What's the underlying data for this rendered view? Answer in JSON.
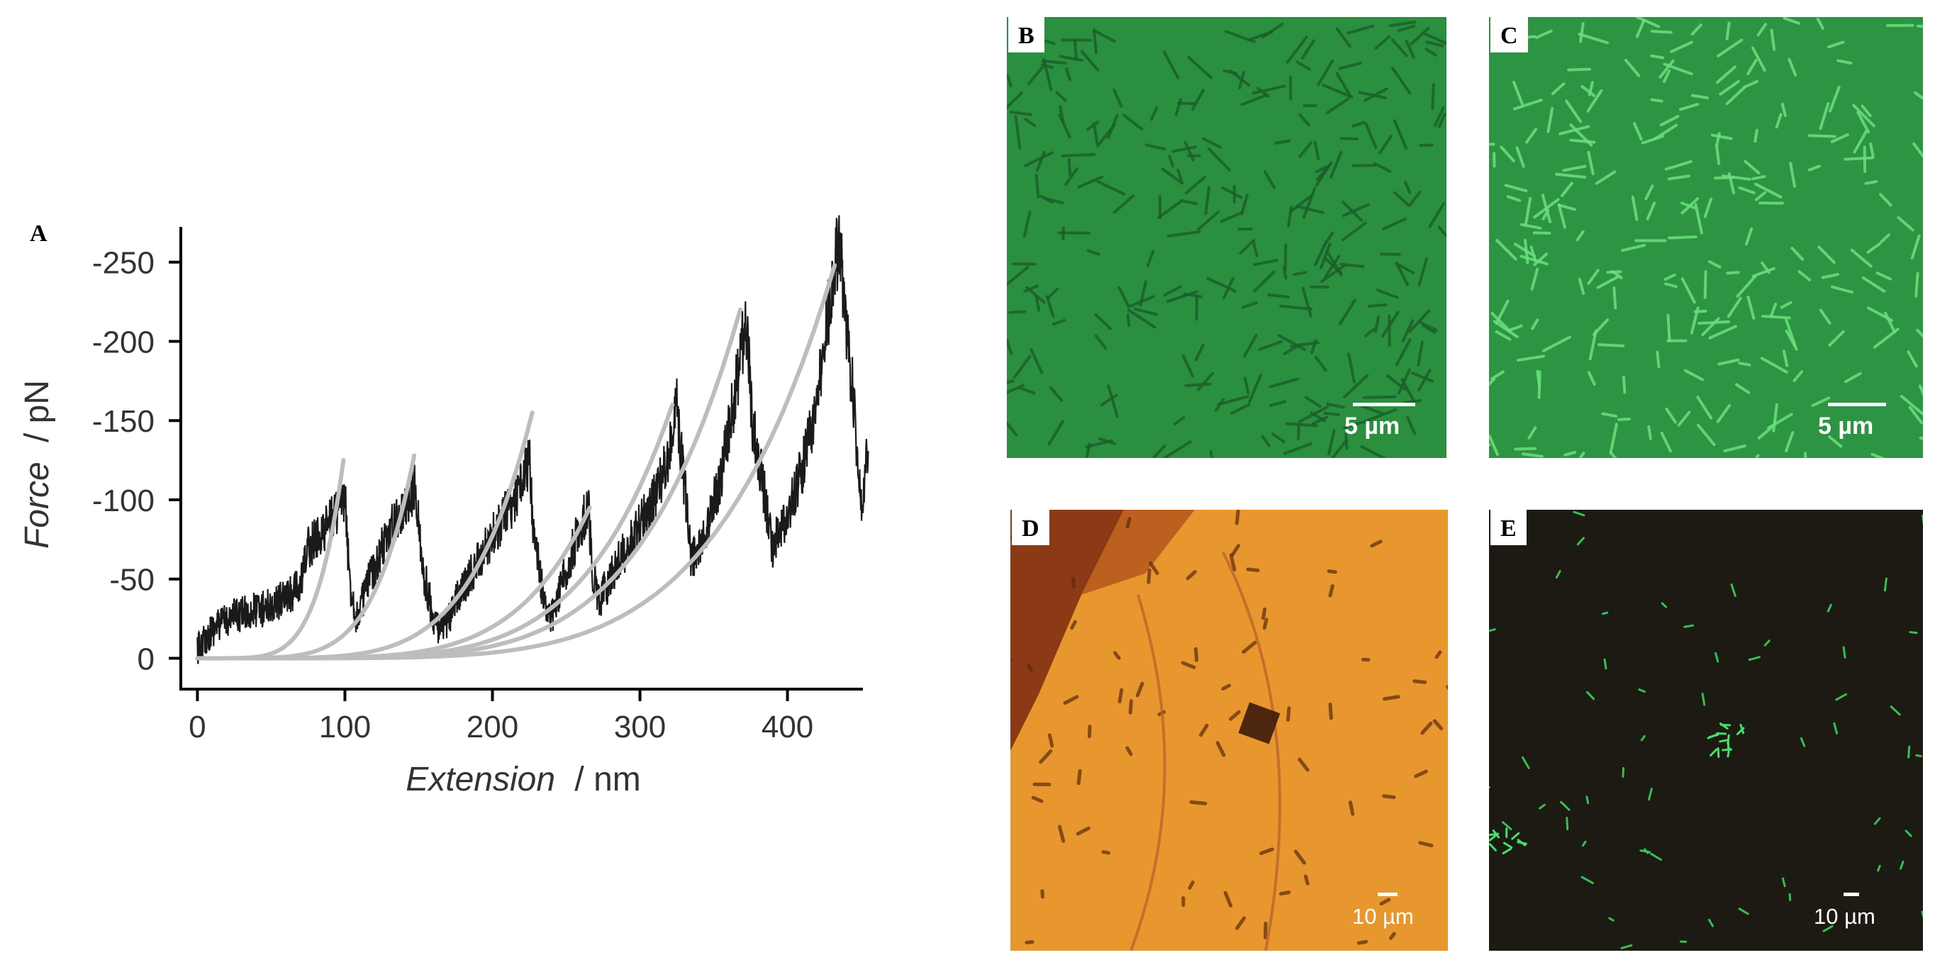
{
  "panels": {
    "a_label": "A",
    "b_label": "B",
    "c_label": "C",
    "d_label": "D",
    "e_label": "E"
  },
  "scale_bars": {
    "b": "5 µm",
    "c": "5 µm",
    "d": "10 µm",
    "e": "10 µm"
  },
  "colors": {
    "trace": "#1a1a1a",
    "fit": "#bdbdbd",
    "b_background": "#2a8f3e",
    "c_background": "#2d9444",
    "d_background": "#e8962e",
    "e_background": "#1c1a12"
  },
  "chart_data": {
    "type": "line",
    "xlabel_italic": "Extension",
    "xlabel_unit": "/ nm",
    "ylabel_italic": "Force",
    "ylabel_unit": "/ pN",
    "xlim": [
      -5,
      455
    ],
    "ylim": [
      15,
      -270
    ],
    "y_inverted": true,
    "x_ticks": [
      0,
      100,
      200,
      300,
      400
    ],
    "x_tick_labels": [
      "0",
      "100",
      "200",
      "300",
      "400"
    ],
    "y_ticks": [
      0,
      -50,
      -100,
      -150,
      -200,
      -250
    ],
    "y_tick_labels": [
      "0",
      "-50",
      "-100",
      "-150",
      "-200",
      "-250"
    ],
    "trace_envelope": [
      {
        "x": 0,
        "y": -5
      },
      {
        "x": 10,
        "y": -18
      },
      {
        "x": 20,
        "y": -25
      },
      {
        "x": 30,
        "y": -28
      },
      {
        "x": 40,
        "y": -30
      },
      {
        "x": 50,
        "y": -33
      },
      {
        "x": 60,
        "y": -38
      },
      {
        "x": 70,
        "y": -45
      },
      {
        "x": 75,
        "y": -70
      },
      {
        "x": 85,
        "y": -80
      },
      {
        "x": 92,
        "y": -90
      },
      {
        "x": 100,
        "y": -102
      },
      {
        "x": 103,
        "y": -50
      },
      {
        "x": 108,
        "y": -25
      },
      {
        "x": 115,
        "y": -45
      },
      {
        "x": 125,
        "y": -70
      },
      {
        "x": 135,
        "y": -88
      },
      {
        "x": 143,
        "y": -100
      },
      {
        "x": 148,
        "y": -110
      },
      {
        "x": 152,
        "y": -60
      },
      {
        "x": 160,
        "y": -25
      },
      {
        "x": 165,
        "y": -15
      },
      {
        "x": 175,
        "y": -35
      },
      {
        "x": 190,
        "y": -60
      },
      {
        "x": 205,
        "y": -85
      },
      {
        "x": 215,
        "y": -100
      },
      {
        "x": 225,
        "y": -125
      },
      {
        "x": 228,
        "y": -80
      },
      {
        "x": 235,
        "y": -35
      },
      {
        "x": 240,
        "y": -25
      },
      {
        "x": 250,
        "y": -55
      },
      {
        "x": 258,
        "y": -80
      },
      {
        "x": 265,
        "y": -95
      },
      {
        "x": 268,
        "y": -55
      },
      {
        "x": 272,
        "y": -35
      },
      {
        "x": 285,
        "y": -60
      },
      {
        "x": 300,
        "y": -85
      },
      {
        "x": 312,
        "y": -105
      },
      {
        "x": 320,
        "y": -130
      },
      {
        "x": 325,
        "y": -160
      },
      {
        "x": 330,
        "y": -110
      },
      {
        "x": 335,
        "y": -60
      },
      {
        "x": 345,
        "y": -80
      },
      {
        "x": 355,
        "y": -115
      },
      {
        "x": 365,
        "y": -170
      },
      {
        "x": 372,
        "y": -215
      },
      {
        "x": 376,
        "y": -150
      },
      {
        "x": 385,
        "y": -100
      },
      {
        "x": 390,
        "y": -70
      },
      {
        "x": 400,
        "y": -90
      },
      {
        "x": 410,
        "y": -120
      },
      {
        "x": 420,
        "y": -160
      },
      {
        "x": 428,
        "y": -220
      },
      {
        "x": 435,
        "y": -265
      },
      {
        "x": 440,
        "y": -210
      },
      {
        "x": 445,
        "y": -160
      },
      {
        "x": 450,
        "y": -100
      },
      {
        "x": 455,
        "y": -135
      }
    ],
    "wlc_fits_peak": [
      {
        "x": 99,
        "y": -125
      },
      {
        "x": 147,
        "y": -128
      },
      {
        "x": 227,
        "y": -155
      },
      {
        "x": 266,
        "y": -95
      },
      {
        "x": 322,
        "y": -160
      },
      {
        "x": 368,
        "y": -220
      },
      {
        "x": 432,
        "y": -248
      }
    ]
  }
}
